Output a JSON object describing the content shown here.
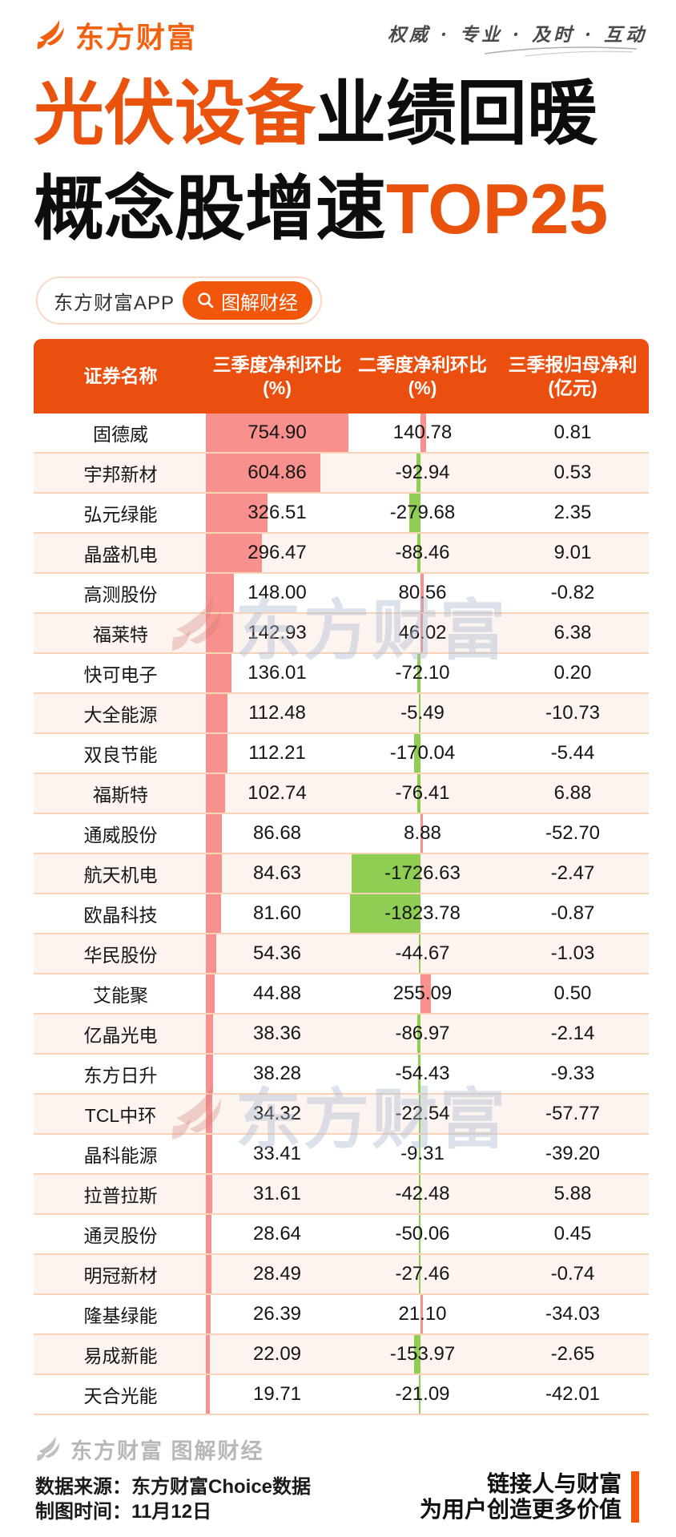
{
  "brand": {
    "logo_text": "东方财富",
    "slogan": "权威 · 专业 · 及时 · 互动"
  },
  "title": {
    "line1_highlight": "光伏设备",
    "line1_rest": "业绩回暖",
    "line2_rest": "概念股增速",
    "line2_highlight": "TOP25"
  },
  "badges": {
    "app_label": "东方财富APP",
    "channel_label": "图解财经"
  },
  "watermark_text": "东方财富",
  "footer": {
    "brand_line": "东方财富 图解财经",
    "source_line": "数据来源：东方财富Choice数据",
    "date_line": "制图时间：11月12日",
    "slogan_line1": "链接人与财富",
    "slogan_line2": "为用户创造更多价值"
  },
  "colors": {
    "brand_orange": "#EE5A0D",
    "header_bg": "#EB4F10",
    "positive_bar": "#F8908E",
    "negative_bar": "#8FCE52",
    "row_divider": "#F7D4B8",
    "row_alt_bg": "#FEF4EF"
  },
  "chart_data": {
    "type": "table",
    "title": "光伏设备业绩回暖 概念股增速TOP25",
    "columns": [
      {
        "title": "证券名称",
        "unit": ""
      },
      {
        "title": "三季度净利环比",
        "unit": "(%)"
      },
      {
        "title": "二季度净利环比",
        "unit": "(%)"
      },
      {
        "title": "三季报归母净利",
        "unit": "(亿元)"
      }
    ],
    "categories": [
      "固德威",
      "宇邦新材",
      "弘元绿能",
      "晶盛机电",
      "高测股份",
      "福莱特",
      "快可电子",
      "大全能源",
      "双良节能",
      "福斯特",
      "通威股份",
      "航天机电",
      "欧晶科技",
      "华民股份",
      "艾能聚",
      "亿晶光电",
      "东方日升",
      "TCL中环",
      "晶科能源",
      "拉普拉斯",
      "通灵股份",
      "明冠新材",
      "隆基绿能",
      "易成新能",
      "天合光能"
    ],
    "series": [
      {
        "name": "三季度净利环比(%)",
        "bar_style": "left-anchored",
        "bar_color": "#F8908E",
        "values": [
          754.9,
          604.86,
          326.51,
          296.47,
          148.0,
          142.93,
          136.01,
          112.48,
          112.21,
          102.74,
          86.68,
          84.63,
          81.6,
          54.36,
          44.88,
          38.36,
          38.28,
          34.32,
          33.41,
          31.61,
          28.64,
          28.49,
          26.39,
          22.09,
          19.71
        ]
      },
      {
        "name": "二季度净利环比(%)",
        "bar_style": "zero-centered",
        "bar_color_positive": "#F8908E",
        "bar_color_negative": "#8FCE52",
        "values": [
          140.78,
          -92.94,
          -279.68,
          -88.46,
          80.56,
          46.02,
          -72.1,
          -5.49,
          -170.04,
          -76.41,
          8.88,
          -1726.63,
          -1823.78,
          -44.67,
          255.09,
          -86.97,
          -54.43,
          -22.54,
          -9.31,
          -42.48,
          -50.06,
          -27.46,
          21.1,
          -153.97,
          -21.09
        ]
      },
      {
        "name": "三季报归母净利(亿元)",
        "bar_style": "none",
        "values": [
          0.81,
          0.53,
          2.35,
          9.01,
          -0.82,
          6.38,
          0.2,
          -10.73,
          -5.44,
          6.88,
          -52.7,
          -2.47,
          -0.87,
          -1.03,
          0.5,
          -2.14,
          -9.33,
          -57.77,
          -39.2,
          5.88,
          0.45,
          -0.74,
          -34.03,
          -2.65,
          -42.01
        ]
      }
    ]
  }
}
